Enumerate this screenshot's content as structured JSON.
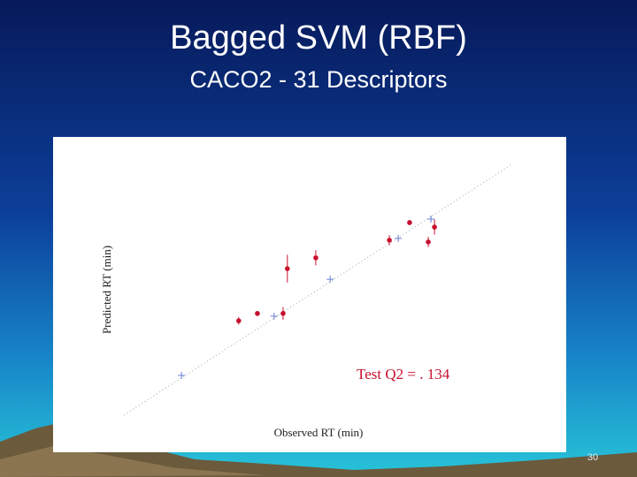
{
  "title": "Bagged SVM (RBF)",
  "subtitle": "CACO2 - 31 Descriptors",
  "page_number": "30",
  "chart_data": {
    "type": "scatter",
    "xlabel": "Observed RT (min)",
    "ylabel": "Predicted RT (min)",
    "annotation": "Test  Q2 = . 134",
    "xlim": [
      0,
      10
    ],
    "ylim": [
      0,
      10
    ],
    "series": [
      {
        "color": "#c8102e",
        "x": [
          2.95,
          3.43,
          4.09,
          4.2,
          4.93,
          6.82,
          7.34,
          7.82,
          7.98
        ],
        "values": [
          3.75,
          4.04,
          4.04,
          5.82,
          6.25,
          6.95,
          7.65,
          6.88,
          7.47
        ],
        "errors": [
          0.15,
          0.1,
          0.25,
          0.55,
          0.3,
          0.2,
          0.1,
          0.2,
          0.3
        ]
      },
      {
        "color": "#6a7fd6",
        "x": [
          1.48,
          3.86,
          5.3,
          7.05,
          7.89
        ],
        "values": [
          1.58,
          3.93,
          5.4,
          7.02,
          7.79
        ]
      }
    ]
  }
}
